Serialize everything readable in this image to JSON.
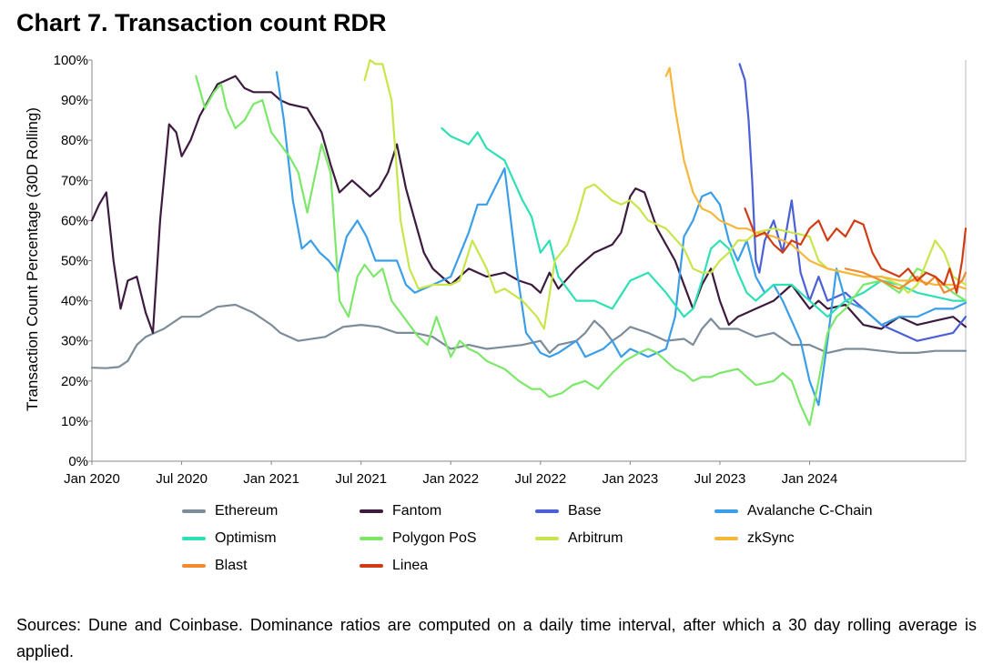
{
  "title": "Chart 7. Transaction count RDR",
  "caption": "Sources: Dune and Coinbase. Dominance ratios are computed on a daily time interval, after which a 30 day rolling average is applied.",
  "chart_data": {
    "type": "line",
    "title": "Chart 7. Transaction count RDR",
    "xlabel": "",
    "ylabel": "Transaction Count Percentage (30D Rolling)",
    "xlim": [
      2020.0,
      2024.87
    ],
    "ylim": [
      0,
      100
    ],
    "x_ticks": [
      {
        "x": 2020.0,
        "label": "Jan 2020"
      },
      {
        "x": 2020.5,
        "label": "Jul 2020"
      },
      {
        "x": 2021.0,
        "label": "Jan 2021"
      },
      {
        "x": 2021.5,
        "label": "Jul 2021"
      },
      {
        "x": 2022.0,
        "label": "Jan 2022"
      },
      {
        "x": 2022.5,
        "label": "Jul 2022"
      },
      {
        "x": 2023.0,
        "label": "Jan 2023"
      },
      {
        "x": 2023.5,
        "label": "Jul 2023"
      },
      {
        "x": 2024.0,
        "label": "Jan 2024"
      }
    ],
    "y_ticks": [
      {
        "y": 0,
        "label": "0%"
      },
      {
        "y": 10,
        "label": "10%"
      },
      {
        "y": 20,
        "label": "20%"
      },
      {
        "y": 30,
        "label": "30%"
      },
      {
        "y": 40,
        "label": "40%"
      },
      {
        "y": 50,
        "label": "50%"
      },
      {
        "y": 60,
        "label": "60%"
      },
      {
        "y": 70,
        "label": "70%"
      },
      {
        "y": 80,
        "label": "80%"
      },
      {
        "y": 90,
        "label": "90%"
      },
      {
        "y": 100,
        "label": "100%"
      }
    ],
    "series": [
      {
        "name": "Ethereum",
        "color": "#7c8c99",
        "x": [
          2020.0,
          2020.08,
          2020.15,
          2020.2,
          2020.25,
          2020.3,
          2020.4,
          2020.5,
          2020.6,
          2020.7,
          2020.8,
          2020.9,
          2021.0,
          2021.05,
          2021.15,
          2021.3,
          2021.4,
          2021.5,
          2021.6,
          2021.7,
          2021.8,
          2021.9,
          2022.0,
          2022.1,
          2022.2,
          2022.3,
          2022.4,
          2022.5,
          2022.55,
          2022.6,
          2022.7,
          2022.75,
          2022.8,
          2022.85,
          2022.9,
          2022.95,
          2023.0,
          2023.1,
          2023.2,
          2023.3,
          2023.35,
          2023.4,
          2023.45,
          2023.5,
          2023.6,
          2023.7,
          2023.8,
          2023.9,
          2024.0,
          2024.1,
          2024.2,
          2024.3,
          2024.4,
          2024.5,
          2024.6,
          2024.7,
          2024.8,
          2024.87
        ],
        "y": [
          23.3,
          23.2,
          23.5,
          25,
          29,
          31,
          33,
          36,
          36,
          38.5,
          39,
          37,
          34,
          32,
          30,
          31,
          33.5,
          34,
          33.5,
          32,
          32,
          31,
          28,
          29,
          28,
          28.5,
          29,
          30,
          27,
          29,
          30,
          32,
          35,
          33,
          30,
          31.5,
          33.5,
          32,
          30,
          30.5,
          29,
          33,
          35.5,
          33,
          33,
          31,
          32,
          29,
          29,
          27,
          28,
          28,
          27.5,
          27,
          27,
          27.5,
          27.5,
          27.5
        ]
      },
      {
        "name": "Fantom",
        "color": "#3d1b3f",
        "x": [
          2020.0,
          2020.04,
          2020.08,
          2020.12,
          2020.16,
          2020.2,
          2020.25,
          2020.3,
          2020.34,
          2020.38,
          2020.43,
          2020.47,
          2020.5,
          2020.55,
          2020.6,
          2020.65,
          2020.7,
          2020.75,
          2020.8,
          2020.85,
          2020.9,
          2020.95,
          2021.0,
          2021.05,
          2021.1,
          2021.2,
          2021.28,
          2021.33,
          2021.38,
          2021.45,
          2021.5,
          2021.55,
          2021.6,
          2021.65,
          2021.7,
          2021.75,
          2021.8,
          2021.85,
          2021.9,
          2022.0,
          2022.05,
          2022.1,
          2022.2,
          2022.3,
          2022.38,
          2022.45,
          2022.5,
          2022.55,
          2022.6,
          2022.7,
          2022.8,
          2022.9,
          2022.95,
          2023.0,
          2023.03,
          2023.08,
          2023.15,
          2023.25,
          2023.3,
          2023.35,
          2023.4,
          2023.45,
          2023.5,
          2023.55,
          2023.6,
          2023.7,
          2023.8,
          2023.9,
          2023.95,
          2024.0,
          2024.05,
          2024.1,
          2024.2,
          2024.3,
          2024.4,
          2024.5,
          2024.6,
          2024.7,
          2024.8,
          2024.87
        ],
        "y": [
          60,
          64,
          67,
          50,
          38,
          45,
          46,
          37,
          32,
          60,
          84,
          82,
          76,
          80,
          86,
          90,
          94,
          95,
          96,
          93,
          92,
          92,
          92,
          90,
          89,
          88,
          82,
          74,
          67,
          70,
          68,
          66,
          68,
          72,
          79,
          68,
          60,
          52,
          48,
          44,
          46,
          48,
          46,
          47,
          45,
          44,
          42,
          47,
          43,
          48,
          52,
          54,
          57,
          66,
          68,
          67,
          58,
          50,
          44,
          38,
          44,
          48,
          40,
          34,
          36,
          38,
          40,
          44,
          41,
          38,
          40,
          38,
          39,
          34,
          33,
          36,
          34,
          35,
          36,
          33.5
        ]
      },
      {
        "name": "Base",
        "color": "#4b5fd6",
        "x": [
          2023.61,
          2023.64,
          2023.66,
          2023.68,
          2023.7,
          2023.72,
          2023.75,
          2023.8,
          2023.85,
          2023.9,
          2023.95,
          2024.0,
          2024.05,
          2024.1,
          2024.2,
          2024.3,
          2024.4,
          2024.5,
          2024.6,
          2024.7,
          2024.8,
          2024.87
        ],
        "y": [
          99,
          95,
          85,
          70,
          50,
          47,
          55,
          60,
          52,
          65,
          47,
          40,
          46,
          40,
          42,
          38,
          34,
          32,
          30,
          31,
          32,
          36
        ]
      },
      {
        "name": "Avalanche C-Chain",
        "color": "#3a9ee8",
        "x": [
          2021.03,
          2021.07,
          2021.12,
          2021.17,
          2021.22,
          2021.27,
          2021.32,
          2021.37,
          2021.42,
          2021.48,
          2021.53,
          2021.58,
          2021.63,
          2021.7,
          2021.75,
          2021.8,
          2021.9,
          2022.0,
          2022.1,
          2022.15,
          2022.2,
          2022.3,
          2022.37,
          2022.42,
          2022.47,
          2022.5,
          2022.55,
          2022.6,
          2022.7,
          2022.75,
          2022.85,
          2022.9,
          2022.95,
          2023.0,
          2023.1,
          2023.2,
          2023.25,
          2023.3,
          2023.35,
          2023.4,
          2023.45,
          2023.5,
          2023.55,
          2023.6,
          2023.65,
          2023.7,
          2023.75,
          2023.8,
          2023.85,
          2023.9,
          2023.95,
          2024.0,
          2024.05,
          2024.1,
          2024.15,
          2024.2,
          2024.3,
          2024.4,
          2024.5,
          2024.6,
          2024.7,
          2024.8,
          2024.87
        ],
        "y": [
          97,
          85,
          65,
          53,
          55,
          52,
          50,
          47,
          56,
          60,
          56,
          50,
          50,
          50,
          44,
          42,
          44,
          46,
          57,
          64,
          64,
          73,
          47,
          32,
          29,
          27,
          26,
          27,
          30,
          26,
          28,
          30,
          26,
          28,
          26,
          28,
          36,
          56,
          60,
          66,
          67,
          64,
          55,
          50,
          55,
          46,
          42,
          44,
          40,
          35,
          30,
          20,
          14,
          30,
          48,
          40,
          38,
          34,
          36,
          36,
          38,
          38,
          39.5
        ]
      },
      {
        "name": "Optimism",
        "color": "#2ee0b4",
        "x": [
          2021.95,
          2022.0,
          2022.1,
          2022.15,
          2022.2,
          2022.3,
          2022.4,
          2022.45,
          2022.5,
          2022.55,
          2022.6,
          2022.7,
          2022.8,
          2022.9,
          2023.0,
          2023.1,
          2023.2,
          2023.3,
          2023.35,
          2023.4,
          2023.45,
          2023.5,
          2023.55,
          2023.6,
          2023.65,
          2023.7,
          2023.8,
          2023.9,
          2023.95,
          2024.0,
          2024.05,
          2024.1,
          2024.2,
          2024.3,
          2024.4,
          2024.5,
          2024.6,
          2024.7,
          2024.8,
          2024.87
        ],
        "y": [
          83,
          81,
          79,
          82,
          78,
          75,
          65,
          61,
          52,
          55,
          46,
          40,
          40,
          38,
          45,
          47,
          42,
          36,
          38,
          45,
          53,
          55,
          53,
          47,
          42,
          40,
          44,
          44,
          42,
          40,
          38,
          36,
          40,
          42,
          45,
          44,
          42,
          41,
          40,
          40
        ]
      },
      {
        "name": "Polygon PoS",
        "color": "#7ce86a",
        "x": [
          2020.58,
          2020.63,
          2020.68,
          2020.72,
          2020.75,
          2020.8,
          2020.85,
          2020.9,
          2020.95,
          2021.0,
          2021.05,
          2021.1,
          2021.15,
          2021.2,
          2021.28,
          2021.33,
          2021.38,
          2021.43,
          2021.48,
          2021.52,
          2021.57,
          2021.62,
          2021.67,
          2021.72,
          2021.77,
          2021.82,
          2021.87,
          2021.92,
          2022.0,
          2022.05,
          2022.1,
          2022.15,
          2022.2,
          2022.25,
          2022.3,
          2022.38,
          2022.45,
          2022.5,
          2022.55,
          2022.62,
          2022.68,
          2022.75,
          2022.82,
          2022.9,
          2022.97,
          2023.05,
          2023.1,
          2023.15,
          2023.2,
          2023.25,
          2023.3,
          2023.35,
          2023.4,
          2023.45,
          2023.5,
          2023.6,
          2023.7,
          2023.8,
          2023.85,
          2023.9,
          2023.95,
          2024.0,
          2024.05,
          2024.1,
          2024.15,
          2024.2,
          2024.3,
          2024.4,
          2024.5,
          2024.6,
          2024.7,
          2024.8,
          2024.87
        ],
        "y": [
          96,
          88,
          92,
          94,
          88,
          83,
          85,
          89,
          90,
          82,
          79,
          76,
          72,
          62,
          79,
          72,
          40,
          36,
          46,
          49,
          46,
          48,
          40,
          37,
          34,
          31,
          29,
          36,
          26,
          30,
          28,
          27,
          25,
          24,
          23,
          20,
          18,
          18,
          16,
          17,
          19,
          20,
          18,
          22,
          25,
          27,
          28,
          27,
          25,
          23,
          22,
          20,
          21,
          21,
          22,
          23,
          19,
          20,
          22,
          20,
          14,
          9,
          20,
          32,
          36,
          38,
          44,
          45,
          42,
          48,
          46,
          42,
          40
        ]
      },
      {
        "name": "Arbitrum",
        "color": "#c8e64a",
        "x": [
          2021.52,
          2021.55,
          2021.58,
          2021.62,
          2021.67,
          2021.72,
          2021.77,
          2021.82,
          2021.9,
          2022.0,
          2022.05,
          2022.12,
          2022.2,
          2022.25,
          2022.3,
          2022.4,
          2022.48,
          2022.52,
          2022.58,
          2022.65,
          2022.7,
          2022.75,
          2022.8,
          2022.9,
          2022.95,
          2023.0,
          2023.05,
          2023.1,
          2023.2,
          2023.3,
          2023.35,
          2023.4,
          2023.45,
          2023.5,
          2023.55,
          2023.6,
          2023.65,
          2023.7,
          2023.8,
          2023.9,
          2024.0,
          2024.05,
          2024.1,
          2024.2,
          2024.3,
          2024.4,
          2024.5,
          2024.55,
          2024.6,
          2024.7,
          2024.75,
          2024.8,
          2024.87
        ],
        "y": [
          95,
          100,
          99,
          99,
          90,
          60,
          48,
          43,
          44,
          44,
          45,
          55,
          48,
          42,
          43,
          40,
          36,
          33,
          50,
          54,
          60,
          68,
          69,
          65,
          64,
          65,
          63,
          60,
          58,
          53,
          48,
          47,
          47,
          50,
          52,
          55,
          55,
          57,
          58,
          57,
          56,
          50,
          48,
          47,
          46,
          46,
          44,
          42,
          44,
          55,
          52,
          46,
          44
        ]
      },
      {
        "name": "zkSync",
        "color": "#f5b83d",
        "x": [
          2023.2,
          2023.22,
          2023.25,
          2023.3,
          2023.35,
          2023.4,
          2023.45,
          2023.5,
          2023.55,
          2023.6,
          2023.65,
          2023.7,
          2023.8,
          2023.9,
          2024.0,
          2024.1,
          2024.2,
          2024.3,
          2024.4,
          2024.5,
          2024.6,
          2024.7,
          2024.8,
          2024.87
        ],
        "y": [
          96,
          98,
          88,
          75,
          67,
          63,
          62,
          60,
          59,
          58,
          58,
          57,
          56,
          54,
          50,
          48,
          47,
          46,
          46,
          45,
          45,
          44,
          44,
          43
        ]
      },
      {
        "name": "Blast",
        "color": "#f28a2e",
        "x": [
          2024.2,
          2024.3,
          2024.4,
          2024.5,
          2024.6,
          2024.65,
          2024.7,
          2024.75,
          2024.8,
          2024.85,
          2024.87
        ],
        "y": [
          48,
          47,
          45,
          43,
          46,
          44,
          46,
          42,
          43,
          45,
          47
        ]
      },
      {
        "name": "Linea",
        "color": "#d23c14",
        "x": [
          2023.64,
          2023.7,
          2023.75,
          2023.8,
          2023.85,
          2023.9,
          2023.95,
          2024.0,
          2024.05,
          2024.1,
          2024.15,
          2024.2,
          2024.25,
          2024.3,
          2024.35,
          2024.4,
          2024.45,
          2024.5,
          2024.55,
          2024.6,
          2024.65,
          2024.7,
          2024.75,
          2024.78,
          2024.82,
          2024.85,
          2024.87
        ],
        "y": [
          63,
          56,
          57,
          54,
          52,
          55,
          54,
          58,
          60,
          55,
          58,
          56,
          60,
          59,
          52,
          48,
          47,
          46,
          48,
          45,
          47,
          46,
          44,
          48,
          42,
          50,
          58
        ]
      }
    ]
  }
}
